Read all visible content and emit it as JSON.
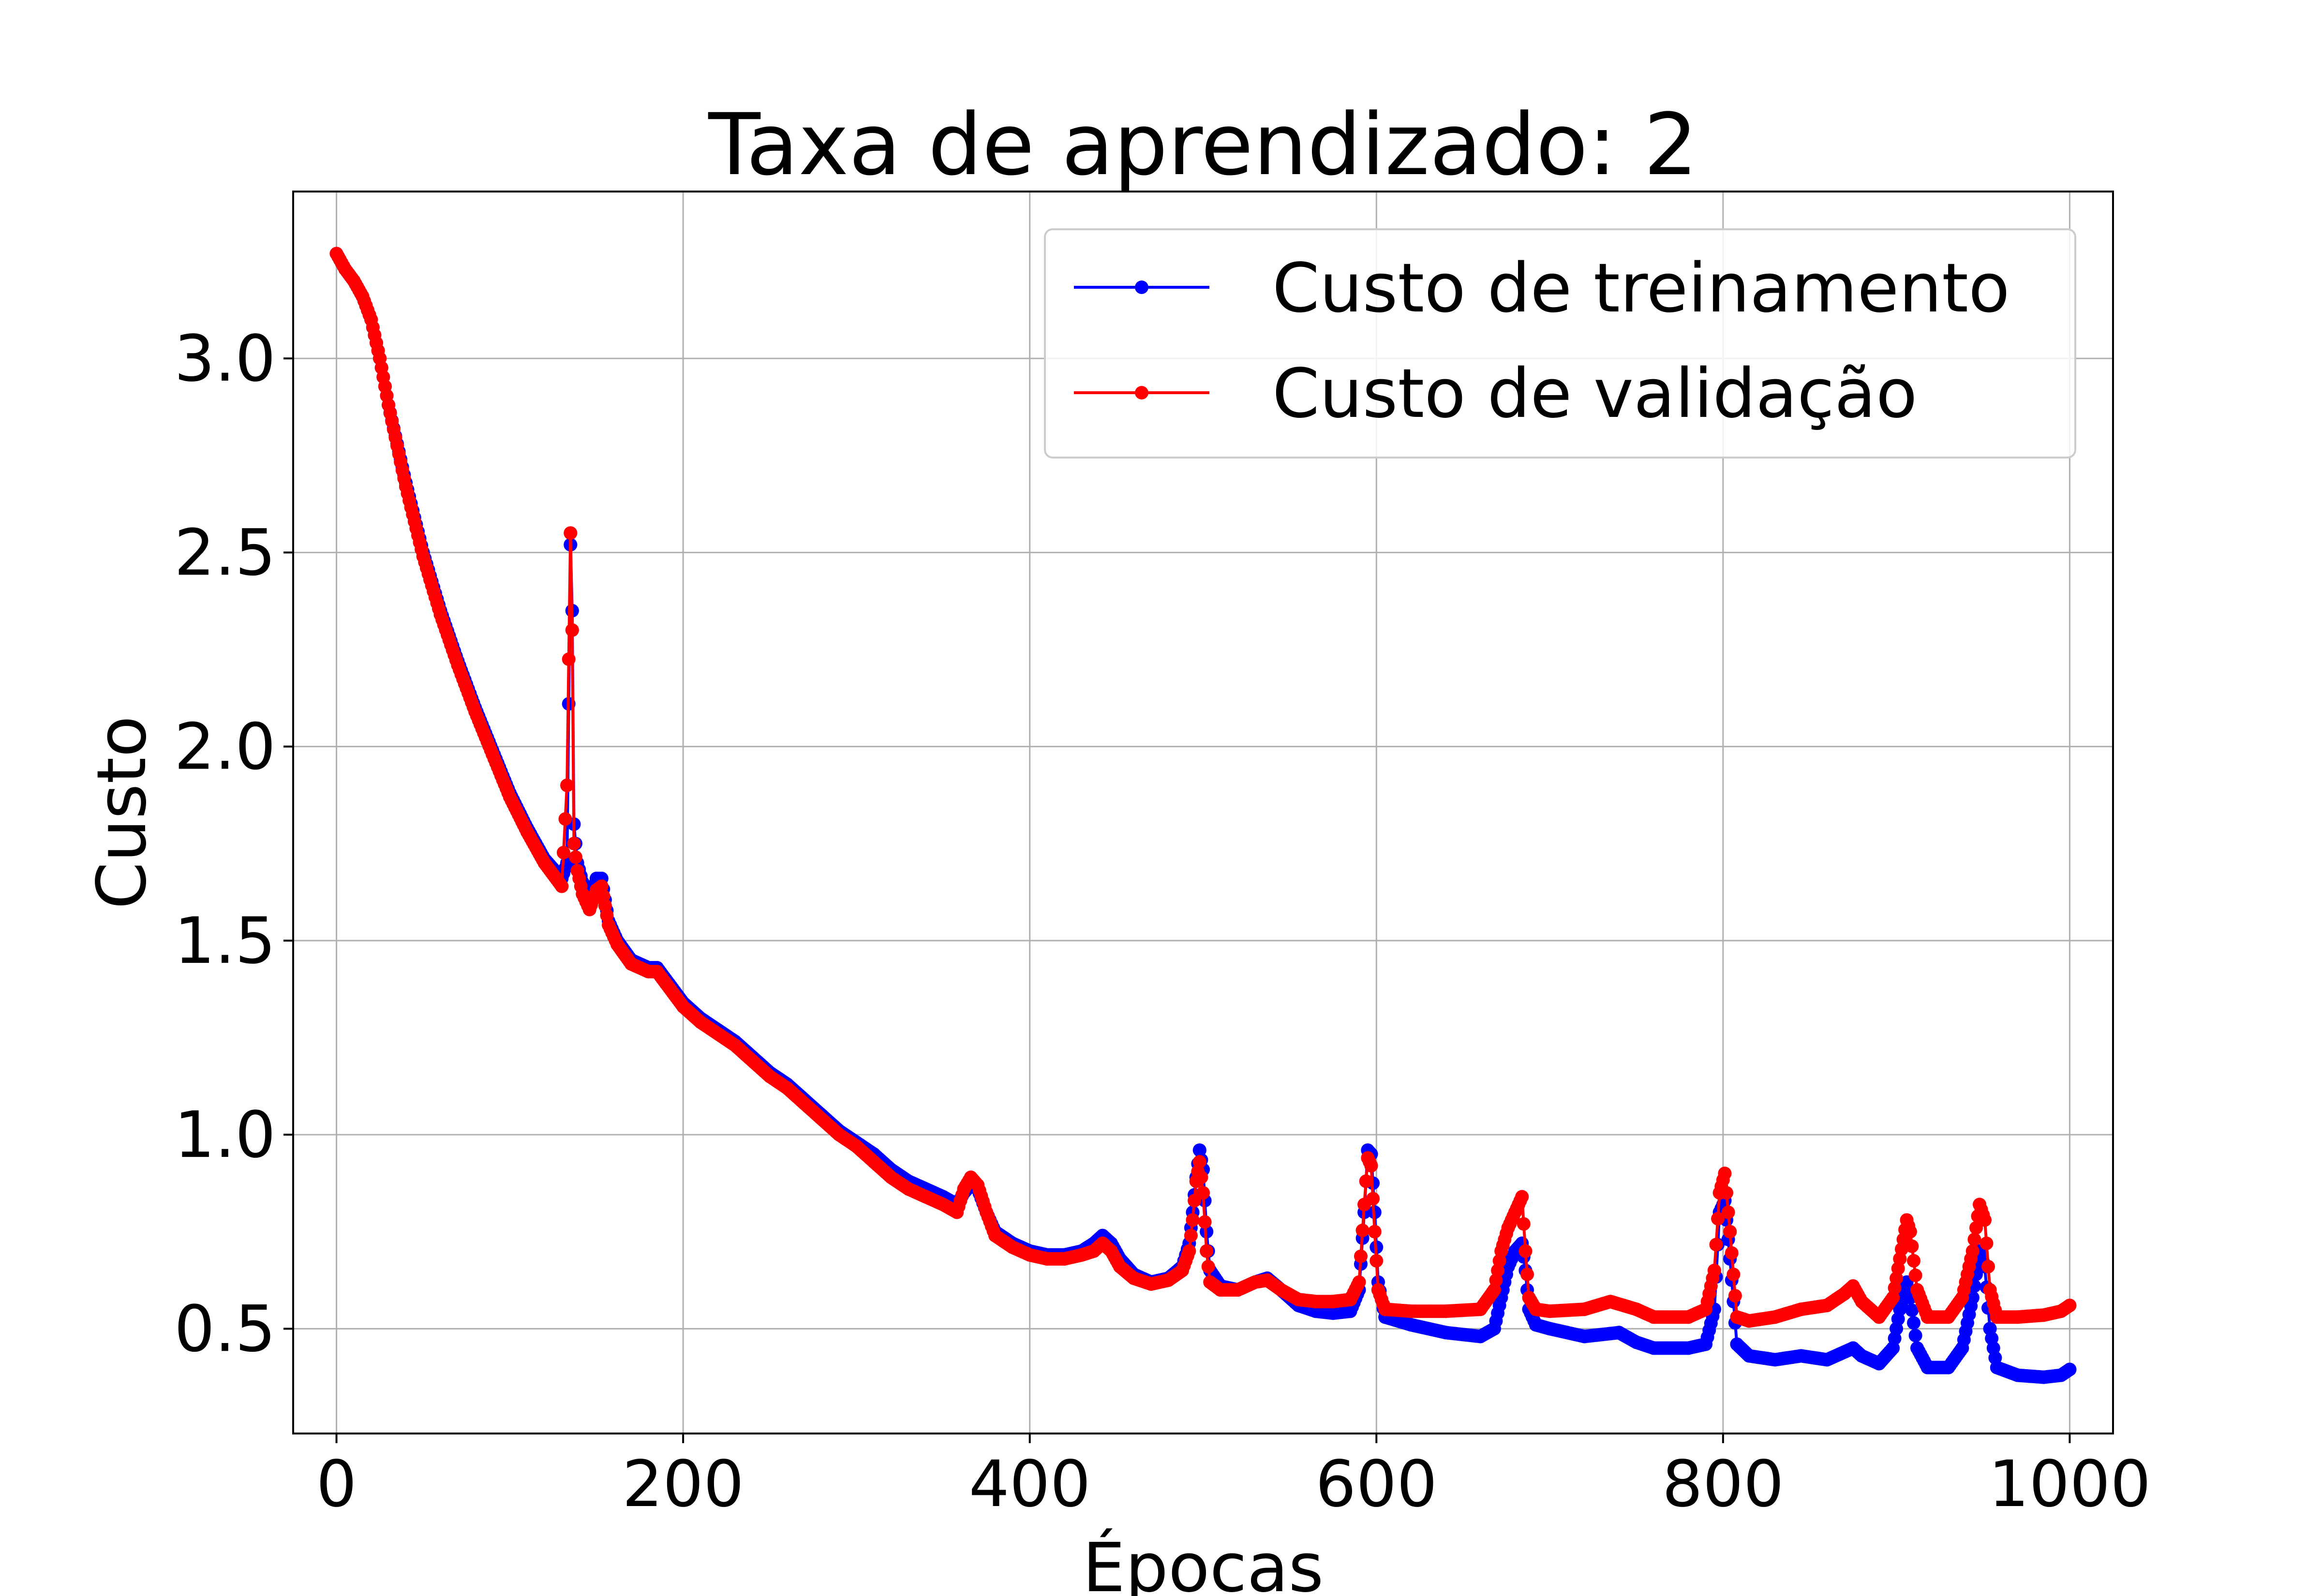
{
  "chart_data": {
    "type": "line",
    "title": "Taxa de aprendizado: 2",
    "xlabel": "Épocas",
    "ylabel": "Custo",
    "xlim": [
      -25,
      1025
    ],
    "ylim": [
      0.23,
      3.43
    ],
    "xticks": [
      0,
      200,
      400,
      600,
      800,
      1000
    ],
    "xtick_labels": [
      "0",
      "200",
      "400",
      "600",
      "800",
      "1000"
    ],
    "yticks": [
      0.5,
      1.0,
      1.5,
      2.0,
      2.5,
      3.0
    ],
    "ytick_labels": [
      "0.5",
      "1.0",
      "1.5",
      "2.0",
      "2.5",
      "3.0"
    ],
    "grid": true,
    "legend_position": "top-right",
    "marker": "circle",
    "series": [
      {
        "name": "Custo de treinamento",
        "color": "#0000ff",
        "points": [
          [
            0,
            3.27
          ],
          [
            5,
            3.23
          ],
          [
            10,
            3.2
          ],
          [
            15,
            3.16
          ],
          [
            20,
            3.1
          ],
          [
            25,
            3.0
          ],
          [
            30,
            2.88
          ],
          [
            40,
            2.68
          ],
          [
            50,
            2.5
          ],
          [
            60,
            2.35
          ],
          [
            70,
            2.22
          ],
          [
            80,
            2.1
          ],
          [
            90,
            1.99
          ],
          [
            100,
            1.88
          ],
          [
            110,
            1.79
          ],
          [
            120,
            1.71
          ],
          [
            130,
            1.66
          ],
          [
            133,
            1.7
          ],
          [
            135,
            2.52
          ],
          [
            136,
            2.35
          ],
          [
            137,
            1.8
          ],
          [
            139,
            1.7
          ],
          [
            142,
            1.65
          ],
          [
            146,
            1.6
          ],
          [
            150,
            1.66
          ],
          [
            153,
            1.66
          ],
          [
            157,
            1.55
          ],
          [
            162,
            1.5
          ],
          [
            170,
            1.45
          ],
          [
            180,
            1.43
          ],
          [
            185,
            1.43
          ],
          [
            190,
            1.4
          ],
          [
            200,
            1.34
          ],
          [
            210,
            1.3
          ],
          [
            220,
            1.27
          ],
          [
            230,
            1.24
          ],
          [
            240,
            1.2
          ],
          [
            250,
            1.16
          ],
          [
            260,
            1.13
          ],
          [
            270,
            1.09
          ],
          [
            280,
            1.05
          ],
          [
            290,
            1.01
          ],
          [
            300,
            0.98
          ],
          [
            310,
            0.95
          ],
          [
            320,
            0.91
          ],
          [
            330,
            0.88
          ],
          [
            340,
            0.86
          ],
          [
            350,
            0.84
          ],
          [
            358,
            0.82
          ],
          [
            362,
            0.85
          ],
          [
            366,
            0.87
          ],
          [
            370,
            0.86
          ],
          [
            375,
            0.8
          ],
          [
            380,
            0.75
          ],
          [
            390,
            0.72
          ],
          [
            400,
            0.7
          ],
          [
            410,
            0.69
          ],
          [
            420,
            0.69
          ],
          [
            430,
            0.7
          ],
          [
            437,
            0.72
          ],
          [
            442,
            0.74
          ],
          [
            447,
            0.72
          ],
          [
            452,
            0.68
          ],
          [
            460,
            0.64
          ],
          [
            470,
            0.62
          ],
          [
            480,
            0.63
          ],
          [
            488,
            0.66
          ],
          [
            492,
            0.72
          ],
          [
            494,
            0.8
          ],
          [
            496,
            0.89
          ],
          [
            498,
            0.96
          ],
          [
            500,
            0.91
          ],
          [
            502,
            0.75
          ],
          [
            504,
            0.65
          ],
          [
            510,
            0.61
          ],
          [
            520,
            0.6
          ],
          [
            530,
            0.62
          ],
          [
            537,
            0.63
          ],
          [
            545,
            0.6
          ],
          [
            555,
            0.56
          ],
          [
            565,
            0.545
          ],
          [
            575,
            0.54
          ],
          [
            585,
            0.545
          ],
          [
            590,
            0.6
          ],
          [
            593,
            0.8
          ],
          [
            595,
            0.96
          ],
          [
            597,
            0.95
          ],
          [
            599,
            0.8
          ],
          [
            601,
            0.62
          ],
          [
            605,
            0.53
          ],
          [
            620,
            0.51
          ],
          [
            640,
            0.49
          ],
          [
            660,
            0.48
          ],
          [
            668,
            0.5
          ],
          [
            672,
            0.58
          ],
          [
            676,
            0.66
          ],
          [
            680,
            0.7
          ],
          [
            684,
            0.72
          ],
          [
            686,
            0.65
          ],
          [
            688,
            0.55
          ],
          [
            692,
            0.51
          ],
          [
            700,
            0.5
          ],
          [
            720,
            0.48
          ],
          [
            740,
            0.49
          ],
          [
            750,
            0.465
          ],
          [
            760,
            0.45
          ],
          [
            780,
            0.45
          ],
          [
            790,
            0.46
          ],
          [
            795,
            0.55
          ],
          [
            798,
            0.8
          ],
          [
            801,
            0.83
          ],
          [
            804,
            0.68
          ],
          [
            808,
            0.46
          ],
          [
            815,
            0.43
          ],
          [
            830,
            0.42
          ],
          [
            845,
            0.43
          ],
          [
            860,
            0.42
          ],
          [
            870,
            0.44
          ],
          [
            875,
            0.45
          ],
          [
            880,
            0.43
          ],
          [
            890,
            0.41
          ],
          [
            898,
            0.45
          ],
          [
            902,
            0.55
          ],
          [
            906,
            0.62
          ],
          [
            908,
            0.58
          ],
          [
            912,
            0.45
          ],
          [
            918,
            0.4
          ],
          [
            930,
            0.4
          ],
          [
            938,
            0.45
          ],
          [
            944,
            0.58
          ],
          [
            948,
            0.7
          ],
          [
            951,
            0.66
          ],
          [
            954,
            0.5
          ],
          [
            958,
            0.4
          ],
          [
            970,
            0.38
          ],
          [
            985,
            0.375
          ],
          [
            995,
            0.38
          ],
          [
            1000,
            0.395
          ]
        ]
      },
      {
        "name": "Custo de validação",
        "color": "#ff0000",
        "points": [
          [
            0,
            3.27
          ],
          [
            5,
            3.23
          ],
          [
            10,
            3.2
          ],
          [
            15,
            3.16
          ],
          [
            20,
            3.1
          ],
          [
            25,
            3.0
          ],
          [
            30,
            2.88
          ],
          [
            40,
            2.67
          ],
          [
            50,
            2.49
          ],
          [
            60,
            2.34
          ],
          [
            70,
            2.21
          ],
          [
            80,
            2.09
          ],
          [
            90,
            1.98
          ],
          [
            100,
            1.87
          ],
          [
            110,
            1.78
          ],
          [
            120,
            1.7
          ],
          [
            130,
            1.64
          ],
          [
            133,
            1.9
          ],
          [
            135,
            2.55
          ],
          [
            136,
            2.3
          ],
          [
            137,
            1.75
          ],
          [
            139,
            1.68
          ],
          [
            142,
            1.62
          ],
          [
            146,
            1.58
          ],
          [
            150,
            1.63
          ],
          [
            153,
            1.64
          ],
          [
            157,
            1.54
          ],
          [
            162,
            1.49
          ],
          [
            170,
            1.44
          ],
          [
            180,
            1.42
          ],
          [
            185,
            1.42
          ],
          [
            190,
            1.39
          ],
          [
            200,
            1.33
          ],
          [
            210,
            1.29
          ],
          [
            220,
            1.26
          ],
          [
            230,
            1.23
          ],
          [
            240,
            1.19
          ],
          [
            250,
            1.15
          ],
          [
            260,
            1.12
          ],
          [
            270,
            1.08
          ],
          [
            280,
            1.04
          ],
          [
            290,
            1.0
          ],
          [
            300,
            0.97
          ],
          [
            310,
            0.93
          ],
          [
            320,
            0.89
          ],
          [
            330,
            0.86
          ],
          [
            340,
            0.84
          ],
          [
            350,
            0.82
          ],
          [
            358,
            0.8
          ],
          [
            362,
            0.86
          ],
          [
            366,
            0.89
          ],
          [
            370,
            0.87
          ],
          [
            375,
            0.8
          ],
          [
            380,
            0.74
          ],
          [
            390,
            0.71
          ],
          [
            400,
            0.69
          ],
          [
            410,
            0.68
          ],
          [
            420,
            0.68
          ],
          [
            430,
            0.69
          ],
          [
            437,
            0.7
          ],
          [
            442,
            0.72
          ],
          [
            447,
            0.7
          ],
          [
            452,
            0.66
          ],
          [
            460,
            0.63
          ],
          [
            470,
            0.615
          ],
          [
            480,
            0.625
          ],
          [
            488,
            0.65
          ],
          [
            492,
            0.7
          ],
          [
            494,
            0.78
          ],
          [
            496,
            0.88
          ],
          [
            498,
            0.93
          ],
          [
            500,
            0.85
          ],
          [
            502,
            0.7
          ],
          [
            504,
            0.62
          ],
          [
            510,
            0.6
          ],
          [
            520,
            0.6
          ],
          [
            530,
            0.62
          ],
          [
            537,
            0.625
          ],
          [
            545,
            0.6
          ],
          [
            555,
            0.575
          ],
          [
            565,
            0.57
          ],
          [
            575,
            0.57
          ],
          [
            585,
            0.575
          ],
          [
            590,
            0.62
          ],
          [
            593,
            0.82
          ],
          [
            595,
            0.94
          ],
          [
            597,
            0.92
          ],
          [
            599,
            0.75
          ],
          [
            601,
            0.6
          ],
          [
            605,
            0.55
          ],
          [
            620,
            0.545
          ],
          [
            640,
            0.545
          ],
          [
            660,
            0.55
          ],
          [
            668,
            0.6
          ],
          [
            672,
            0.7
          ],
          [
            676,
            0.76
          ],
          [
            680,
            0.8
          ],
          [
            684,
            0.84
          ],
          [
            686,
            0.7
          ],
          [
            688,
            0.58
          ],
          [
            692,
            0.55
          ],
          [
            700,
            0.545
          ],
          [
            720,
            0.55
          ],
          [
            735,
            0.57
          ],
          [
            750,
            0.55
          ],
          [
            760,
            0.53
          ],
          [
            780,
            0.53
          ],
          [
            790,
            0.55
          ],
          [
            795,
            0.65
          ],
          [
            798,
            0.85
          ],
          [
            801,
            0.9
          ],
          [
            804,
            0.75
          ],
          [
            808,
            0.53
          ],
          [
            815,
            0.52
          ],
          [
            830,
            0.53
          ],
          [
            845,
            0.55
          ],
          [
            860,
            0.56
          ],
          [
            870,
            0.59
          ],
          [
            875,
            0.61
          ],
          [
            880,
            0.57
          ],
          [
            890,
            0.53
          ],
          [
            898,
            0.58
          ],
          [
            902,
            0.68
          ],
          [
            906,
            0.78
          ],
          [
            908,
            0.75
          ],
          [
            912,
            0.6
          ],
          [
            918,
            0.53
          ],
          [
            930,
            0.53
          ],
          [
            938,
            0.58
          ],
          [
            944,
            0.7
          ],
          [
            948,
            0.82
          ],
          [
            951,
            0.78
          ],
          [
            954,
            0.6
          ],
          [
            958,
            0.53
          ],
          [
            970,
            0.53
          ],
          [
            985,
            0.535
          ],
          [
            995,
            0.545
          ],
          [
            1000,
            0.56
          ]
        ]
      }
    ]
  }
}
